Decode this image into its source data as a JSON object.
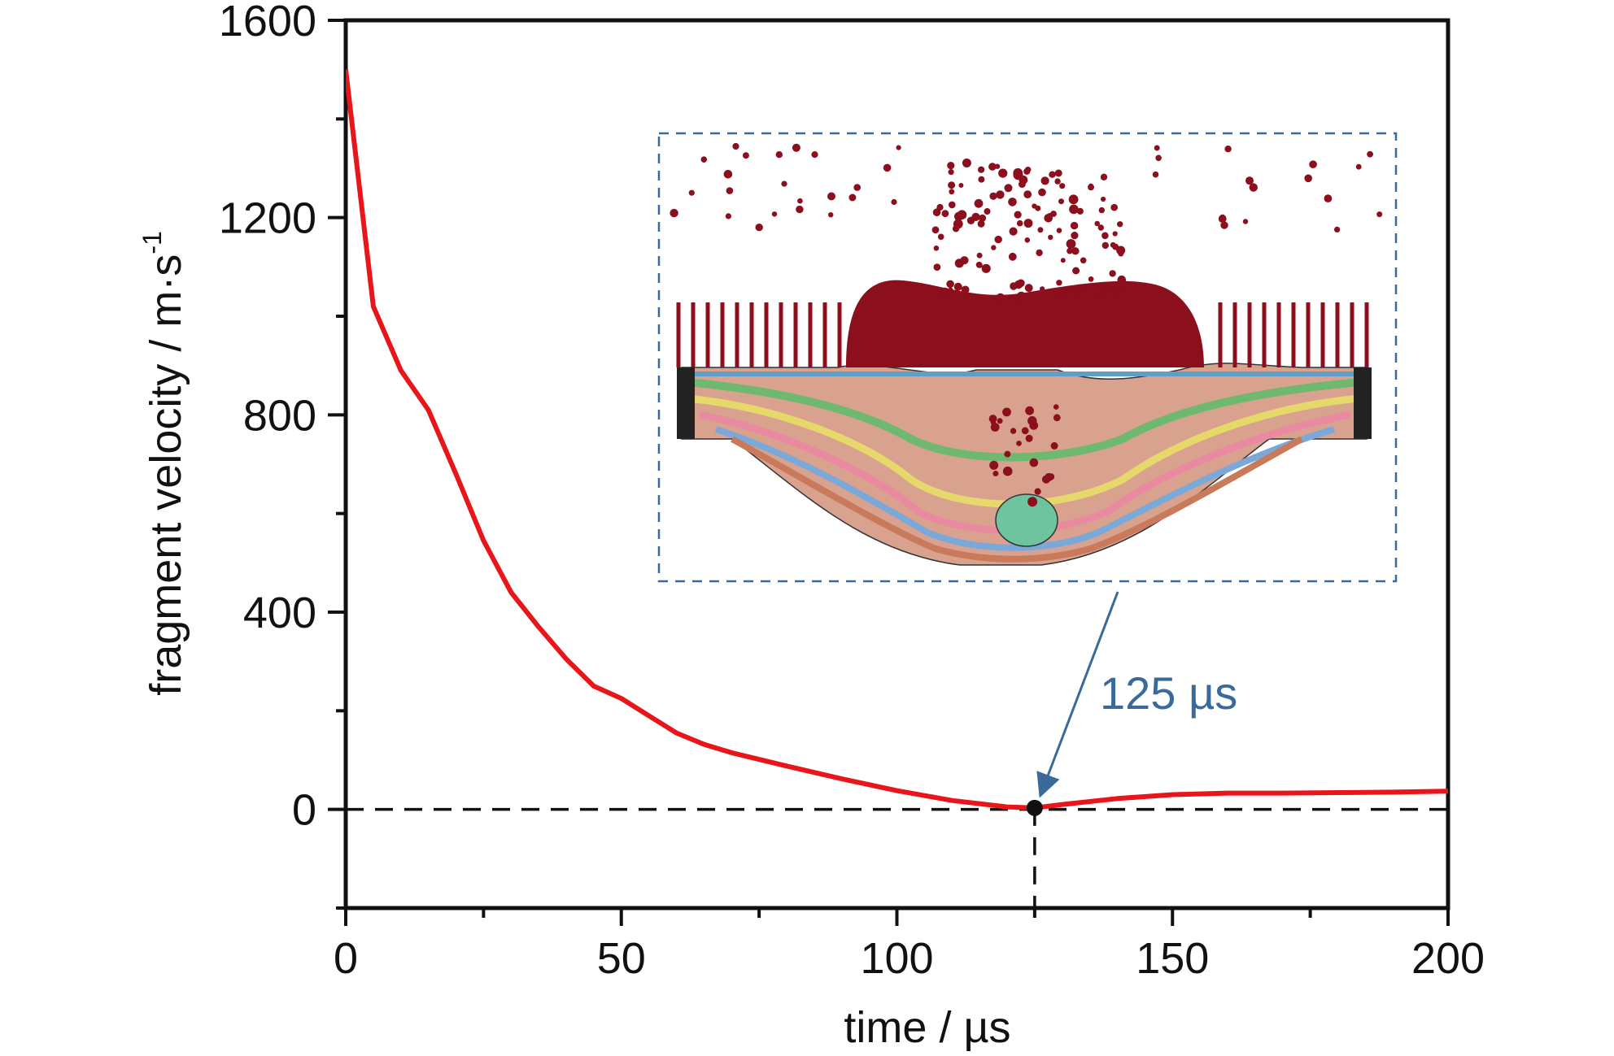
{
  "chart_data": {
    "type": "line",
    "xlabel": "time / µs",
    "ylabel": "fragment velocity / m·s",
    "ylabel_superscript": "-1",
    "xlim": [
      0,
      200
    ],
    "ylim": [
      -200,
      1600
    ],
    "x_ticks": [
      0,
      50,
      100,
      150,
      200
    ],
    "y_ticks": [
      0,
      400,
      800,
      1200,
      1600
    ],
    "grid": false,
    "series": [
      {
        "color": "#e8161a",
        "x": [
          0,
          5,
          10,
          15,
          20,
          25,
          30,
          35,
          40,
          45,
          50,
          55,
          60,
          65,
          70,
          80,
          90,
          100,
          110,
          120,
          125,
          130,
          140,
          150,
          160,
          170,
          180,
          190,
          200
        ],
        "y": [
          1500,
          1020,
          890,
          810,
          680,
          545,
          440,
          370,
          305,
          250,
          225,
          190,
          155,
          132,
          115,
          88,
          62,
          38,
          18,
          5,
          3,
          10,
          22,
          30,
          33,
          33,
          34,
          35,
          37
        ]
      }
    ],
    "reference_line": {
      "y": 0,
      "style": "dashed",
      "color": "#111111"
    },
    "marker": {
      "x": 125,
      "y": 3,
      "color": "#111111"
    },
    "vertical_marker_line": {
      "x": 125,
      "style": "dashed"
    },
    "annotation": {
      "text": "125 µs",
      "color": "#3a6a9a",
      "points_to": [
        125,
        3
      ]
    },
    "inset": {
      "border_color": "#3a6a9a",
      "border_style": "dashed"
    }
  }
}
